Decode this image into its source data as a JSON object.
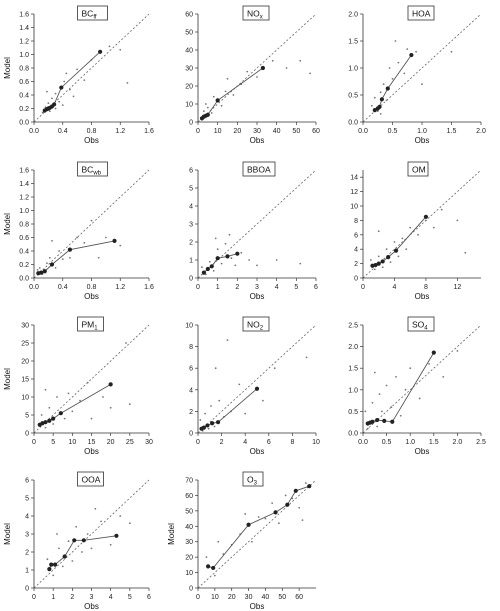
{
  "chart_data": [
    {
      "type": "scatter",
      "title": "BC",
      "title_sub": "ff",
      "xlabel": "Obs",
      "ylabel": "Model",
      "xlim": [
        0,
        1.6
      ],
      "ylim": [
        0,
        1.6
      ],
      "xticks": [
        "0.0",
        "0.4",
        "0.8",
        "1.2",
        "1.6"
      ],
      "yticks": [
        "0.0",
        "0.2",
        "0.4",
        "0.6",
        "0.8",
        "1.0",
        "1.2",
        "1.4",
        "1.6"
      ],
      "binned": [
        [
          0.15,
          0.17
        ],
        [
          0.18,
          0.19
        ],
        [
          0.2,
          0.2
        ],
        [
          0.22,
          0.21
        ],
        [
          0.25,
          0.23
        ],
        [
          0.28,
          0.26
        ],
        [
          0.38,
          0.51
        ],
        [
          0.92,
          1.04
        ]
      ],
      "points": [
        [
          0.12,
          0.14
        ],
        [
          0.16,
          0.22
        ],
        [
          0.2,
          0.28
        ],
        [
          0.22,
          0.16
        ],
        [
          0.25,
          0.35
        ],
        [
          0.3,
          0.2
        ],
        [
          0.3,
          0.42
        ],
        [
          0.35,
          0.3
        ],
        [
          0.4,
          0.25
        ],
        [
          0.42,
          0.6
        ],
        [
          0.5,
          0.48
        ],
        [
          0.55,
          0.38
        ],
        [
          0.6,
          0.78
        ],
        [
          0.7,
          0.62
        ],
        [
          0.8,
          0.92
        ],
        [
          1.05,
          1.12
        ],
        [
          1.2,
          1.07
        ],
        [
          1.3,
          0.58
        ],
        [
          0.18,
          0.45
        ],
        [
          0.45,
          0.72
        ]
      ]
    },
    {
      "type": "scatter",
      "title": "NO",
      "title_sub": "x",
      "xlabel": "Obs",
      "ylabel": "",
      "xlim": [
        0,
        60
      ],
      "ylim": [
        0,
        60
      ],
      "xticks": [
        "0",
        "10",
        "20",
        "30",
        "40",
        "50",
        "60"
      ],
      "yticks": [
        "0",
        "10",
        "20",
        "30",
        "40",
        "50",
        "60"
      ],
      "binned": [
        [
          2,
          2
        ],
        [
          3,
          3
        ],
        [
          4,
          3.5
        ],
        [
          5,
          4
        ],
        [
          10,
          12
        ],
        [
          33,
          30
        ]
      ],
      "points": [
        [
          3,
          6
        ],
        [
          5,
          8
        ],
        [
          7,
          5
        ],
        [
          8,
          14
        ],
        [
          12,
          9
        ],
        [
          14,
          17
        ],
        [
          18,
          15
        ],
        [
          22,
          21
        ],
        [
          25,
          28
        ],
        [
          30,
          25
        ],
        [
          38,
          34
        ],
        [
          45,
          30
        ],
        [
          52,
          34
        ],
        [
          57,
          27
        ],
        [
          4,
          10
        ],
        [
          15,
          24
        ]
      ]
    },
    {
      "type": "scatter",
      "title": "HOA",
      "title_sub": "",
      "xlabel": "Obs",
      "ylabel": "",
      "xlim": [
        0,
        2
      ],
      "ylim": [
        0,
        2
      ],
      "xticks": [
        "0.0",
        "0.5",
        "1.0",
        "1.5",
        "2.0"
      ],
      "yticks": [
        "0.0",
        "0.5",
        "1.0",
        "1.5",
        "2.0"
      ],
      "binned": [
        [
          0.2,
          0.22
        ],
        [
          0.25,
          0.25
        ],
        [
          0.28,
          0.28
        ],
        [
          0.32,
          0.42
        ],
        [
          0.42,
          0.62
        ],
        [
          0.82,
          1.24
        ]
      ],
      "points": [
        [
          0.15,
          0.3
        ],
        [
          0.2,
          0.45
        ],
        [
          0.25,
          0.2
        ],
        [
          0.3,
          0.55
        ],
        [
          0.35,
          0.7
        ],
        [
          0.4,
          0.4
        ],
        [
          0.45,
          1.0
        ],
        [
          0.5,
          0.8
        ],
        [
          0.6,
          1.1
        ],
        [
          0.7,
          0.9
        ],
        [
          0.75,
          1.35
        ],
        [
          0.9,
          1.3
        ],
        [
          1.0,
          0.7
        ],
        [
          1.5,
          1.3
        ],
        [
          0.55,
          1.5
        ],
        [
          0.3,
          0.15
        ]
      ]
    },
    {
      "type": "scatter",
      "title": "BC",
      "title_sub": "wb",
      "xlabel": "Obs",
      "ylabel": "Model",
      "xlim": [
        0,
        1.6
      ],
      "ylim": [
        0,
        1.6
      ],
      "xticks": [
        "0.0",
        "0.4",
        "0.8",
        "1.2",
        "1.6"
      ],
      "yticks": [
        "0.0",
        "0.2",
        "0.4",
        "0.6",
        "0.8",
        "1.0",
        "1.2",
        "1.4",
        "1.6"
      ],
      "binned": [
        [
          0.06,
          0.07
        ],
        [
          0.1,
          0.08
        ],
        [
          0.15,
          0.1
        ],
        [
          0.25,
          0.2
        ],
        [
          0.5,
          0.42
        ],
        [
          1.12,
          0.55
        ]
      ],
      "points": [
        [
          0.05,
          0.12
        ],
        [
          0.08,
          0.15
        ],
        [
          0.12,
          0.06
        ],
        [
          0.18,
          0.22
        ],
        [
          0.22,
          0.3
        ],
        [
          0.3,
          0.15
        ],
        [
          0.35,
          0.4
        ],
        [
          0.4,
          0.28
        ],
        [
          0.5,
          0.3
        ],
        [
          0.6,
          0.6
        ],
        [
          0.7,
          0.52
        ],
        [
          0.8,
          0.85
        ],
        [
          1.0,
          0.6
        ],
        [
          1.2,
          0.48
        ],
        [
          0.9,
          0.3
        ],
        [
          0.25,
          0.55
        ]
      ]
    },
    {
      "type": "scatter",
      "title": "BBOA",
      "title_sub": "",
      "xlabel": "Obs",
      "ylabel": "",
      "xlim": [
        0,
        6
      ],
      "ylim": [
        0,
        6
      ],
      "xticks": [
        "0",
        "1",
        "2",
        "3",
        "4",
        "5",
        "6"
      ],
      "yticks": [
        "0",
        "1",
        "2",
        "3",
        "4",
        "5",
        "6"
      ],
      "binned": [
        [
          0.3,
          0.3
        ],
        [
          0.5,
          0.5
        ],
        [
          0.7,
          0.65
        ],
        [
          1.0,
          1.1
        ],
        [
          1.5,
          1.2
        ],
        [
          2.0,
          1.35
        ]
      ],
      "points": [
        [
          0.2,
          0.6
        ],
        [
          0.4,
          0.2
        ],
        [
          0.6,
          0.9
        ],
        [
          0.8,
          0.4
        ],
        [
          1.0,
          1.6
        ],
        [
          1.2,
          0.8
        ],
        [
          1.4,
          1.9
        ],
        [
          1.7,
          1.1
        ],
        [
          1.9,
          0.7
        ],
        [
          2.2,
          1.4
        ],
        [
          2.6,
          1.0
        ],
        [
          3.0,
          0.7
        ],
        [
          4.0,
          1.0
        ],
        [
          5.2,
          0.8
        ],
        [
          0.9,
          2.2
        ],
        [
          1.6,
          2.4
        ]
      ]
    },
    {
      "type": "scatter",
      "title": "OM",
      "title_sub": "",
      "xlabel": "Obs",
      "ylabel": "",
      "xlim": [
        0,
        15
      ],
      "ylim": [
        0,
        15
      ],
      "xticks": [
        "0",
        "4",
        "8",
        "12"
      ],
      "yticks": [
        "0",
        "2",
        "4",
        "6",
        "8",
        "10",
        "12",
        "14"
      ],
      "binned": [
        [
          1.2,
          1.7
        ],
        [
          1.6,
          1.8
        ],
        [
          2.0,
          2.0
        ],
        [
          2.5,
          2.3
        ],
        [
          3.2,
          2.9
        ],
        [
          4.2,
          3.8
        ],
        [
          8.0,
          8.5
        ]
      ],
      "points": [
        [
          1,
          2.5
        ],
        [
          1.5,
          1.2
        ],
        [
          2,
          3
        ],
        [
          2.5,
          1.5
        ],
        [
          3,
          4
        ],
        [
          3.5,
          2.2
        ],
        [
          4,
          5
        ],
        [
          4.5,
          3
        ],
        [
          5,
          5.5
        ],
        [
          5.5,
          4
        ],
        [
          6,
          7
        ],
        [
          7,
          6
        ],
        [
          8,
          8
        ],
        [
          9,
          7
        ],
        [
          10,
          9.5
        ],
        [
          12,
          8
        ],
        [
          13,
          3.5
        ],
        [
          2,
          6.5
        ]
      ]
    },
    {
      "type": "scatter",
      "title": "PM",
      "title_sub": "1",
      "xlabel": "Obs",
      "ylabel": "Model",
      "xlim": [
        0,
        30
      ],
      "ylim": [
        0,
        30
      ],
      "xticks": [
        "0",
        "5",
        "10",
        "15",
        "20",
        "25",
        "30"
      ],
      "yticks": [
        "0",
        "5",
        "10",
        "15",
        "20",
        "25",
        "30"
      ],
      "binned": [
        [
          1.5,
          2.3
        ],
        [
          2.2,
          2.7
        ],
        [
          3,
          3
        ],
        [
          4,
          3.4
        ],
        [
          5,
          4
        ],
        [
          7,
          5.5
        ],
        [
          20,
          13.5
        ]
      ],
      "points": [
        [
          2,
          5
        ],
        [
          3,
          1.5
        ],
        [
          4,
          7
        ],
        [
          5,
          2.5
        ],
        [
          6,
          10
        ],
        [
          8,
          4
        ],
        [
          9,
          11
        ],
        [
          10,
          6
        ],
        [
          12,
          9
        ],
        [
          14,
          14
        ],
        [
          18,
          10
        ],
        [
          20,
          7
        ],
        [
          24,
          25
        ],
        [
          25,
          8
        ],
        [
          3,
          12
        ],
        [
          15,
          4
        ]
      ]
    },
    {
      "type": "scatter",
      "title": "NO",
      "title_sub": "2",
      "xlabel": "Obs",
      "ylabel": "",
      "xlim": [
        0,
        10
      ],
      "ylim": [
        0,
        10
      ],
      "xticks": [
        "0",
        "2",
        "4",
        "6",
        "8",
        "10"
      ],
      "yticks": [
        "0",
        "2",
        "4",
        "6",
        "8",
        "10"
      ],
      "binned": [
        [
          0.3,
          0.4
        ],
        [
          0.5,
          0.5
        ],
        [
          0.8,
          0.7
        ],
        [
          1.2,
          0.9
        ],
        [
          1.7,
          1.0
        ],
        [
          5.0,
          4.1
        ]
      ],
      "points": [
        [
          0.2,
          1.2
        ],
        [
          0.4,
          0.2
        ],
        [
          0.6,
          1.8
        ],
        [
          0.9,
          0.4
        ],
        [
          1.1,
          2.5
        ],
        [
          1.4,
          0.6
        ],
        [
          1.8,
          3.0
        ],
        [
          2.2,
          1.5
        ],
        [
          2.8,
          2.0
        ],
        [
          3.5,
          4.5
        ],
        [
          4.0,
          1.8
        ],
        [
          5.5,
          3.0
        ],
        [
          6.5,
          6.0
        ],
        [
          9.2,
          7.0
        ],
        [
          1.5,
          6.0
        ],
        [
          2.5,
          8.6
        ]
      ]
    },
    {
      "type": "scatter",
      "title": "SO",
      "title_sub": "4",
      "xlabel": "Obs",
      "ylabel": "",
      "xlim": [
        0,
        2.5
      ],
      "ylim": [
        0,
        2.5
      ],
      "xticks": [
        "0.0",
        "0.5",
        "1.0",
        "1.5",
        "2.0",
        "2.5"
      ],
      "yticks": [
        "0.0",
        "0.5",
        "1.0",
        "1.5",
        "2.0",
        "2.5"
      ],
      "binned": [
        [
          0.1,
          0.22
        ],
        [
          0.15,
          0.24
        ],
        [
          0.2,
          0.26
        ],
        [
          0.3,
          0.3
        ],
        [
          0.45,
          0.28
        ],
        [
          0.62,
          0.26
        ],
        [
          1.5,
          1.86
        ]
      ],
      "points": [
        [
          0.05,
          0.5
        ],
        [
          0.1,
          0.1
        ],
        [
          0.2,
          0.7
        ],
        [
          0.3,
          0.15
        ],
        [
          0.35,
          0.9
        ],
        [
          0.4,
          0.5
        ],
        [
          0.5,
          1.1
        ],
        [
          0.6,
          0.6
        ],
        [
          0.7,
          1.3
        ],
        [
          0.8,
          0.4
        ],
        [
          0.9,
          1.0
        ],
        [
          1.0,
          1.5
        ],
        [
          1.2,
          0.8
        ],
        [
          1.4,
          1.6
        ],
        [
          1.7,
          1.3
        ],
        [
          2.0,
          1.9
        ],
        [
          0.25,
          1.4
        ]
      ]
    },
    {
      "type": "scatter",
      "title": "OOA",
      "title_sub": "",
      "xlabel": "Obs",
      "ylabel": "Model",
      "xlim": [
        0,
        6
      ],
      "ylim": [
        0,
        6
      ],
      "xticks": [
        "0",
        "1",
        "2",
        "3",
        "4",
        "5",
        "6"
      ],
      "yticks": [
        "0",
        "1",
        "2",
        "3",
        "4",
        "5",
        "6"
      ],
      "binned": [
        [
          0.8,
          1.05
        ],
        [
          0.9,
          1.3
        ],
        [
          1.1,
          1.3
        ],
        [
          1.6,
          1.75
        ],
        [
          2.1,
          2.65
        ],
        [
          2.6,
          2.65
        ],
        [
          4.3,
          2.9
        ]
      ],
      "points": [
        [
          0.7,
          1.6
        ],
        [
          1.0,
          0.7
        ],
        [
          1.3,
          2.2
        ],
        [
          1.5,
          1.2
        ],
        [
          1.8,
          2.6
        ],
        [
          2.0,
          1.5
        ],
        [
          2.2,
          3.4
        ],
        [
          2.5,
          2.0
        ],
        [
          2.8,
          3.0
        ],
        [
          3.0,
          2.2
        ],
        [
          3.5,
          3.7
        ],
        [
          4.0,
          2.4
        ],
        [
          4.5,
          4.0
        ],
        [
          5.0,
          3.6
        ],
        [
          1.2,
          3.0
        ],
        [
          3.2,
          4.4
        ]
      ]
    },
    {
      "type": "scatter",
      "title": "O",
      "title_sub": "3",
      "xlabel": "Obs",
      "ylabel": "Model",
      "xlim": [
        0,
        70
      ],
      "ylim": [
        0,
        70
      ],
      "xticks": [
        "0",
        "10",
        "20",
        "30",
        "40",
        "50",
        "60"
      ],
      "yticks": [
        "0",
        "10",
        "20",
        "30",
        "40",
        "50",
        "60",
        "70"
      ],
      "binned": [
        [
          6,
          14
        ],
        [
          9,
          13
        ],
        [
          30,
          41
        ],
        [
          46,
          49
        ],
        [
          53,
          54
        ],
        [
          58,
          63
        ],
        [
          66,
          66
        ]
      ],
      "points": [
        [
          5,
          20
        ],
        [
          10,
          8
        ],
        [
          15,
          22
        ],
        [
          20,
          28
        ],
        [
          25,
          35
        ],
        [
          28,
          48
        ],
        [
          32,
          30
        ],
        [
          36,
          46
        ],
        [
          40,
          45
        ],
        [
          44,
          55
        ],
        [
          48,
          42
        ],
        [
          52,
          60
        ],
        [
          56,
          58
        ],
        [
          60,
          52
        ],
        [
          64,
          68
        ],
        [
          62,
          44
        ],
        [
          12,
          30
        ]
      ]
    }
  ]
}
